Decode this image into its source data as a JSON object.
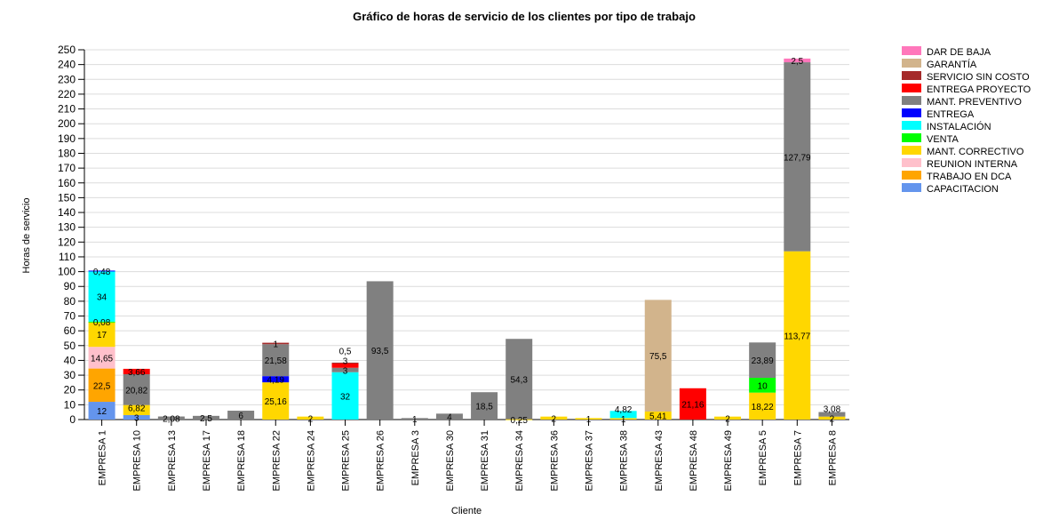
{
  "chart_data": {
    "type": "bar",
    "stacked": true,
    "title": "Gráfico de horas de servicio de los clientes por tipo de trabajo",
    "xlabel": "Cliente",
    "ylabel": "Horas de servicio",
    "ylim": [
      0,
      250
    ],
    "ytick_step": 10,
    "grid": true,
    "legend_placement": "right",
    "categories": [
      "EMPRESA 1",
      "EMPRESA 10",
      "EMPRESA 13",
      "EMPRESA 17",
      "EMPRESA 18",
      "EMPRESA 22",
      "EMPRESA 24",
      "EMPRESA 25",
      "EMPRESA 26",
      "EMPRESA 3",
      "EMPRESA 30",
      "EMPRESA 31",
      "EMPRESA 34",
      "EMPRESA 36",
      "EMPRESA 37",
      "EMPRESA 38",
      "EMPRESA 43",
      "EMPRESA 48",
      "EMPRESA 49",
      "EMPRESA 5",
      "EMPRESA 7",
      "EMPRESA 8"
    ],
    "series": [
      {
        "name": "CAPACITACION",
        "color": "#6495ed",
        "values": [
          12,
          3,
          0,
          0,
          0,
          0,
          0,
          0,
          0,
          0,
          0,
          0,
          0,
          0,
          0,
          0,
          0,
          0,
          0,
          0,
          0,
          0
        ]
      },
      {
        "name": "TRABAJO EN DCA",
        "color": "#ffa500",
        "values": [
          22.5,
          0,
          0,
          0,
          0,
          0,
          0,
          0,
          0,
          0,
          0,
          0,
          0,
          0,
          0,
          0,
          0,
          0,
          0,
          0,
          0,
          0
        ]
      },
      {
        "name": "REUNION INTERNA",
        "color": "#ffc0cb",
        "values": [
          14.65,
          0,
          0,
          0,
          0,
          0,
          0,
          0,
          0,
          0,
          0,
          0,
          0,
          0,
          0,
          0,
          0,
          0,
          0,
          0,
          0,
          0
        ]
      },
      {
        "name": "MANT. CORRECTIVO",
        "color": "#ffd700",
        "values": [
          17,
          6.82,
          0,
          0,
          0,
          25.16,
          2,
          0,
          0,
          0,
          0,
          0,
          0.25,
          2,
          1,
          1,
          5.41,
          0,
          2,
          18.22,
          113.77,
          2
        ]
      },
      {
        "name": "VENTA",
        "color": "#00ff00",
        "values": [
          0.08,
          0,
          0,
          0,
          0,
          0,
          0,
          0,
          0,
          0,
          0,
          0,
          0,
          0,
          0,
          0,
          0,
          0,
          0,
          10,
          0,
          0
        ]
      },
      {
        "name": "INSTALACIÓN",
        "color": "#00ffff",
        "values": [
          34,
          0,
          0,
          0,
          0,
          0,
          0,
          32,
          0,
          0,
          0,
          0,
          0,
          0,
          0,
          4.82,
          0,
          0,
          0,
          0,
          0,
          0
        ]
      },
      {
        "name": "ENTREGA",
        "color": "#0000ff",
        "values": [
          0.48,
          0,
          0,
          0,
          0,
          4.19,
          0,
          0,
          0,
          0,
          0,
          0,
          0,
          0,
          0,
          0,
          0,
          0,
          0,
          0,
          0,
          0
        ]
      },
      {
        "name": "MANT. PREVENTIVO",
        "color": "#808080",
        "values": [
          0,
          20.82,
          2.08,
          2.5,
          6,
          21.58,
          0,
          3,
          93.5,
          1,
          4,
          18.5,
          54.3,
          0,
          0,
          0,
          0,
          0,
          0,
          23.89,
          127.79,
          3.08
        ]
      },
      {
        "name": "ENTREGA PROYECTO",
        "color": "#ff0000",
        "values": [
          0,
          3.66,
          0,
          0,
          0,
          0,
          0,
          3,
          0,
          0,
          0,
          0,
          0,
          0,
          0,
          0,
          0,
          21.16,
          0,
          0,
          0,
          0
        ]
      },
      {
        "name": "SERVICIO SIN COSTO",
        "color": "#a52a2a",
        "values": [
          0,
          0,
          0,
          0,
          0,
          1,
          0,
          0.5,
          0,
          0,
          0,
          0,
          0,
          0,
          0,
          0,
          0,
          0,
          0,
          0,
          0,
          0
        ]
      },
      {
        "name": "GARANTÍA",
        "color": "#d2b48c",
        "values": [
          0,
          0,
          0,
          0,
          0,
          0,
          0,
          0,
          0,
          0,
          0,
          0,
          0,
          0,
          0,
          0,
          75.5,
          0,
          0,
          0,
          0,
          0
        ]
      },
      {
        "name": "DAR DE BAJA",
        "color": "#ff77bb",
        "values": [
          0,
          0,
          0,
          0,
          0,
          0,
          0,
          0,
          0,
          0,
          0,
          0,
          0,
          0,
          0,
          0,
          0,
          0,
          0,
          0,
          2.5,
          0
        ]
      }
    ]
  }
}
